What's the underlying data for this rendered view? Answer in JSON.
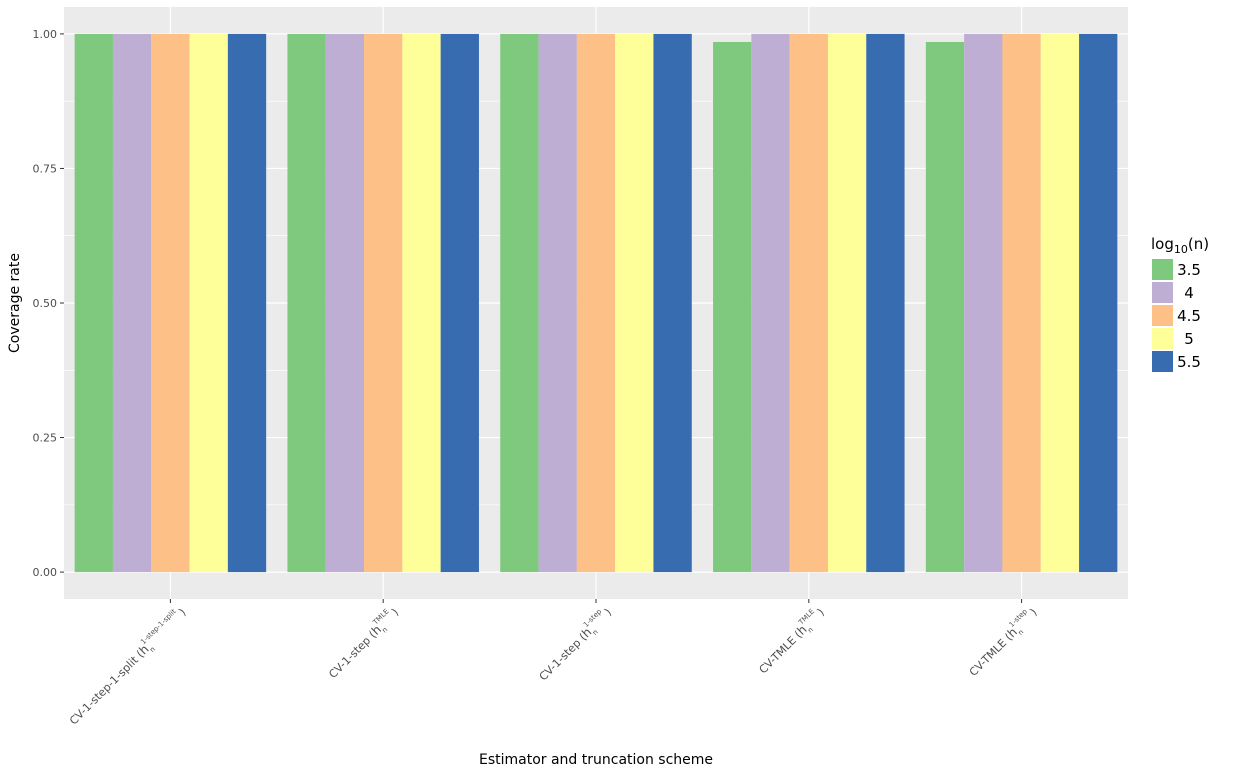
{
  "chart_data": {
    "type": "bar",
    "title": "",
    "xlabel": "Estimator and truncation scheme",
    "ylabel": "Coverage rate",
    "ylim": [
      -0.05,
      1.05
    ],
    "yticks": [
      0.0,
      0.25,
      0.5,
      0.75,
      1.0
    ],
    "ytick_labels": [
      "0.00",
      "0.25",
      "0.50",
      "0.75",
      "1.00"
    ],
    "grid": true,
    "categories": [
      {
        "main": "CV-1-step-1-split (",
        "hat": "h",
        "sub": "n",
        "sup": "1-step-1-split",
        "close": ")"
      },
      {
        "main": "CV-1-step (",
        "hat": "h",
        "sub": "n",
        "sup": "TMLE",
        "close": ")"
      },
      {
        "main": "CV-1-step (",
        "hat": "h",
        "sub": "n",
        "sup": "1-step",
        "close": ")"
      },
      {
        "main": "CV-TMLE (",
        "hat": "h",
        "sub": "n",
        "sup": "TMLE",
        "close": ")"
      },
      {
        "main": "CV-TMLE (",
        "hat": "h",
        "sub": "n",
        "sup": "1-step",
        "close": ")"
      }
    ],
    "series": [
      {
        "name": "3.5",
        "color": "#7fc97f",
        "values": [
          1.0,
          1.0,
          1.0,
          0.985,
          0.985
        ]
      },
      {
        "name": "4",
        "color": "#beaed4",
        "values": [
          1.0,
          1.0,
          1.0,
          1.0,
          1.0
        ]
      },
      {
        "name": "4.5",
        "color": "#fdc086",
        "values": [
          1.0,
          1.0,
          1.0,
          1.0,
          1.0
        ]
      },
      {
        "name": "5",
        "color": "#ffff99",
        "values": [
          1.0,
          1.0,
          1.0,
          1.0,
          1.0
        ]
      },
      {
        "name": "5.5",
        "color": "#386cb0",
        "values": [
          1.0,
          1.0,
          1.0,
          1.0,
          1.0
        ]
      }
    ],
    "legend": {
      "title_base": "log",
      "title_sub": "10",
      "title_arg": "(n)",
      "position": "right"
    }
  }
}
